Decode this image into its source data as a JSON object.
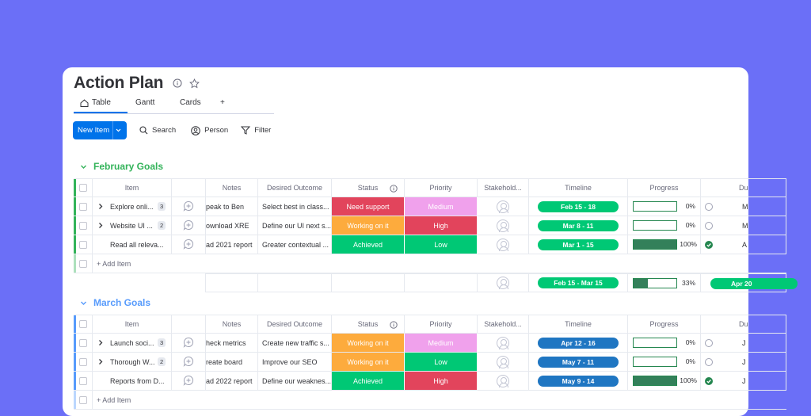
{
  "board": {
    "title": "Action Plan",
    "tabs": [
      {
        "label": "Table"
      },
      {
        "label": "Gantt"
      },
      {
        "label": "Cards"
      },
      {
        "label": "+"
      }
    ]
  },
  "toolbar": {
    "new_item": "New Item",
    "search": "Search",
    "person": "Person",
    "filter": "Filter"
  },
  "columns": {
    "item": "Item",
    "notes": "Notes",
    "outcome": "Desired Outcome",
    "status": "Status",
    "priority": "Priority",
    "stakeholder": "Stakehold...",
    "timeline": "Timeline",
    "progress": "Progress",
    "due": "Du"
  },
  "groups": [
    {
      "name": "February Goals",
      "color": "#33b35a",
      "rows": [
        {
          "item": "Explore onli...",
          "count": "3",
          "notes": "peak to Ben",
          "outcome": "Select best in class...",
          "status": "Need support",
          "status_color": "#e2445c",
          "priority": "Medium",
          "priority_color": "#f0a1ec",
          "timeline": "Feb 15 - 18",
          "progress": 0,
          "progress_label": "0%",
          "done": false,
          "due": "M"
        },
        {
          "item": "Website UI ...",
          "count": "2",
          "notes": "ownload XRE",
          "outcome": "Define our UI next s...",
          "status": "Working on it",
          "status_color": "#fdab3d",
          "priority": "High",
          "priority_color": "#e2445c",
          "timeline": "Mar 8 - 11",
          "progress": 0,
          "progress_label": "0%",
          "done": false,
          "due": "M"
        },
        {
          "item": "Read all releva...",
          "count": "",
          "notes": "ad 2021 report",
          "outcome": "Greater contextual ...",
          "status": "Achieved",
          "status_color": "#00c875",
          "priority": "Low",
          "priority_color": "#00c875",
          "timeline": "Mar 1 - 15",
          "progress": 100,
          "progress_label": "100%",
          "done": true,
          "due": "A"
        }
      ],
      "add_item": "+ Add Item",
      "summary": {
        "timeline": "Feb 15 - Mar 15",
        "progress": 33,
        "progress_label": "33%",
        "due": "Apr 20"
      }
    },
    {
      "name": "March Goals",
      "color": "#579bfc",
      "rows": [
        {
          "item": "Launch soci...",
          "count": "3",
          "notes": "heck metrics",
          "outcome": "Create new traffic s...",
          "status": "Working on it",
          "status_color": "#fdab3d",
          "priority": "Medium",
          "priority_color": "#f0a1ec",
          "timeline": "Apr 12 - 16",
          "progress": 0,
          "progress_label": "0%",
          "done": false,
          "due": "J"
        },
        {
          "item": "Thorough W...",
          "count": "2",
          "notes": "reate board",
          "outcome": "Improve our SEO",
          "status": "Working on it",
          "status_color": "#fdab3d",
          "priority": "Low",
          "priority_color": "#00c875",
          "timeline": "May 7 - 11",
          "progress": 0,
          "progress_label": "0%",
          "done": false,
          "due": "J"
        },
        {
          "item": "Reports from D...",
          "count": "",
          "notes": "ad 2022 report",
          "outcome": "Define our weaknes...",
          "status": "Achieved",
          "status_color": "#00c875",
          "priority": "High",
          "priority_color": "#e2445c",
          "timeline": "May 9 - 14",
          "progress": 100,
          "progress_label": "100%",
          "done": true,
          "due": "J"
        }
      ],
      "add_item": "+ Add Item"
    }
  ]
}
